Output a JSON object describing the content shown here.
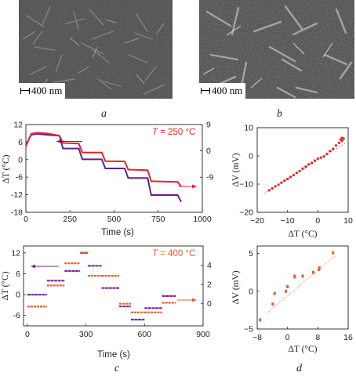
{
  "figure": {
    "panel_a": {
      "label": "a",
      "scale_bar": "400 nm"
    },
    "panel_b": {
      "label": "b",
      "scale_bar": "400 nm"
    },
    "panel_c": {
      "label": "c"
    },
    "panel_d": {
      "label": "d"
    }
  },
  "colors": {
    "red": "#e8232a",
    "purple": "#6b1d8a",
    "orange": "#ea5e2c",
    "purple2": "#7a2a9a"
  },
  "chart_data": [
    {
      "id": "c-top",
      "type": "line",
      "title": "",
      "annotation": {
        "italic": "T",
        "text": " = 250 °C"
      },
      "xlabel": "Time (s)",
      "ylabel": "ΔT (°C)",
      "y2label": "ΔV (mV)",
      "xlim": [
        0,
        1000
      ],
      "ylim": [
        -18,
        12
      ],
      "y2lim": [
        -21,
        9
      ],
      "xticks": [
        "0",
        "250",
        "500",
        "750",
        "1000"
      ],
      "yticks": [
        "12",
        "6",
        "0",
        "-6",
        "-12",
        "-18"
      ],
      "y2ticks": [
        "9",
        "0",
        "-9"
      ],
      "series": [
        {
          "axis": "left",
          "color": "purple",
          "x": [
            0,
            30,
            60,
            120,
            190,
            210,
            300,
            320,
            430,
            450,
            560,
            580,
            690,
            710,
            860,
            880
          ],
          "y": [
            5,
            8.5,
            8.8,
            8.5,
            8.2,
            3.8,
            3.8,
            0.1,
            0.1,
            -3.0,
            -3.0,
            -6.3,
            -6.3,
            -12.1,
            -12.1,
            -14.4
          ]
        },
        {
          "axis": "right",
          "color": "red",
          "x": [
            0,
            30,
            60,
            120,
            190,
            210,
            300,
            320,
            430,
            450,
            560,
            580,
            690,
            710,
            860,
            880
          ],
          "y": [
            1.5,
            5.8,
            6.2,
            6.0,
            5.2,
            2.7,
            2.5,
            -0.6,
            -0.6,
            -3.5,
            -3.6,
            -6.4,
            -6.6,
            -10.4,
            -10.6,
            -12.2
          ]
        }
      ]
    },
    {
      "id": "d-top",
      "type": "scatter",
      "title": "",
      "xlabel": "ΔT (°C)",
      "ylabel": "ΔV (mV)",
      "xlim": [
        -20,
        10
      ],
      "ylim": [
        -20,
        10
      ],
      "xticks": [
        "−20",
        "−10",
        "0",
        "10"
      ],
      "yticks": [
        "10",
        "0",
        "−10",
        "−20"
      ],
      "series": [
        {
          "color": "red",
          "x": [
            -16,
            -15,
            -14,
            -13,
            -12,
            -11,
            -10,
            -9,
            -8,
            -7,
            -6,
            -5,
            -4,
            -3,
            -2,
            -1,
            0,
            1,
            2,
            3,
            4,
            5,
            6,
            7,
            8,
            8.5,
            8,
            7.5
          ],
          "y": [
            -12.2,
            -11.5,
            -10.8,
            -10.2,
            -9.5,
            -8.8,
            -8.2,
            -7.5,
            -6.8,
            -6.0,
            -5.4,
            -4.5,
            -3.8,
            -3.0,
            -2.5,
            -1.7,
            -1.0,
            -0.6,
            -0.2,
            0.7,
            1.7,
            2.5,
            3.7,
            4.6,
            5.3,
            6.1,
            6.4,
            5.8
          ]
        }
      ]
    },
    {
      "id": "c-bottom",
      "type": "line",
      "title": "",
      "annotation": {
        "italic": "T",
        "text": " = 400 °C"
      },
      "xlabel": "Time (s)",
      "ylabel": "ΔT (°C)",
      "y2label": "ΔV (mV)",
      "xlim": [
        -20,
        900
      ],
      "ylim": [
        -9,
        14
      ],
      "y2lim": [
        -2.3,
        6
      ],
      "xticks": [
        "0",
        "300",
        "600",
        "900"
      ],
      "yticks": [
        "12",
        "6",
        "0",
        "-6"
      ],
      "y2ticks": [
        "4",
        "2",
        "0"
      ],
      "series": [
        {
          "axis": "left",
          "color": "purple2",
          "segments": [
            [
              0,
              100,
              0.0
            ],
            [
              100,
              190,
              4.0
            ],
            [
              190,
              270,
              6.8
            ],
            [
              270,
              310,
              12.0
            ],
            [
              310,
              380,
              8.3
            ],
            [
              380,
              470,
              1.9
            ],
            [
              470,
              530,
              -3.4
            ],
            [
              530,
              600,
              -7.2
            ],
            [
              600,
              690,
              -3.9
            ],
            [
              690,
              760,
              -0.4
            ]
          ]
        },
        {
          "axis": "right",
          "color": "orange",
          "segments": [
            [
              0,
              100,
              -0.3
            ],
            [
              100,
              190,
              1.9
            ],
            [
              190,
              270,
              4.2
            ],
            [
              270,
              310,
              5.3
            ],
            [
              310,
              380,
              2.9
            ],
            [
              380,
              470,
              2.9
            ],
            [
              470,
              530,
              0.0
            ],
            [
              530,
              600,
              -0.9
            ],
            [
              600,
              690,
              -0.9
            ],
            [
              690,
              760,
              0.1
            ]
          ]
        }
      ]
    },
    {
      "id": "d-bottom",
      "type": "scatter",
      "title": "",
      "xlabel": "ΔT (°C)",
      "ylabel": "ΔV (mV)",
      "xlim": [
        -8,
        16
      ],
      "ylim": [
        -5,
        6
      ],
      "xticks": [
        "−8",
        "0",
        "8",
        "16"
      ],
      "yticks": [
        "5",
        "0",
        "−5"
      ],
      "series": [
        {
          "color": "orange",
          "x": [
            -7.2,
            -3.9,
            -3.4,
            -0.4,
            0.0,
            1.9,
            1.9,
            4.0,
            6.8,
            8.3,
            8.4,
            12.0
          ],
          "y": [
            -3.8,
            -1.7,
            -0.3,
            0.0,
            0.6,
            1.9,
            2.0,
            2.0,
            2.5,
            2.9,
            3.1,
            5.1
          ]
        }
      ]
    }
  ]
}
